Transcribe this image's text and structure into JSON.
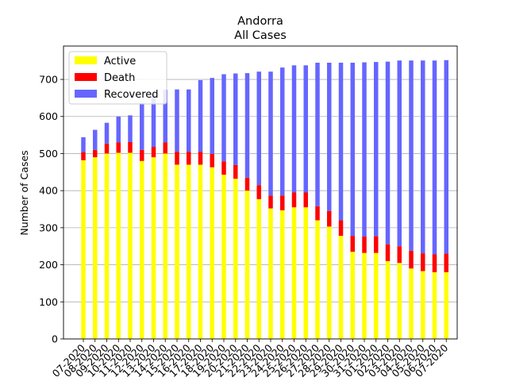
{
  "chart_data": {
    "type": "bar",
    "stacked": true,
    "title": "Andorra",
    "subtitle": "All Cases",
    "xlabel": "",
    "ylabel": "Number of Cases",
    "ylim": [
      0,
      790
    ],
    "yticks": [
      0,
      100,
      200,
      300,
      400,
      500,
      600,
      700
    ],
    "grid": "y",
    "legend_position": "top-left",
    "categories": [
      "07-2020",
      "08-2020",
      "09-2020",
      "10-2020",
      "11-2020",
      "12-2020",
      "13-2020",
      "14-2020",
      "15-2020",
      "16-2020",
      "17-2020",
      "18-2020",
      "19-2020",
      "20-2020",
      "21-2020",
      "22-2020",
      "23-2020",
      "24-2020",
      "25-2020",
      "26-2020",
      "27-2020",
      "28-2020",
      "29-2020",
      "30-2020",
      "31-2020",
      "01-2020",
      "02-2020",
      "03-2020",
      "04-2020",
      "05-2020",
      "06-2020",
      "07-2020"
    ],
    "series": [
      {
        "name": "Active",
        "color": "#ffff00",
        "values": [
          482,
          490,
          500,
          502,
          502,
          480,
          490,
          500,
          470,
          470,
          470,
          463,
          443,
          432,
          400,
          377,
          352,
          347,
          355,
          355,
          320,
          303,
          278,
          235,
          232,
          232,
          210,
          205,
          190,
          183,
          180,
          180
        ]
      },
      {
        "name": "Death",
        "color": "#ff0000",
        "values": [
          22,
          20,
          27,
          28,
          29,
          30,
          28,
          30,
          35,
          35,
          35,
          36,
          36,
          37,
          35,
          38,
          35,
          40,
          40,
          40,
          38,
          42,
          42,
          43,
          44,
          45,
          45,
          45,
          48,
          48,
          48,
          50
        ]
      },
      {
        "name": "Recovered",
        "color": "#6666ff",
        "values": [
          40,
          54,
          56,
          70,
          72,
          126,
          145,
          142,
          168,
          168,
          193,
          205,
          235,
          247,
          282,
          306,
          334,
          345,
          343,
          343,
          387,
          400,
          425,
          467,
          470,
          470,
          493,
          501,
          513,
          520,
          523,
          522
        ]
      }
    ]
  }
}
